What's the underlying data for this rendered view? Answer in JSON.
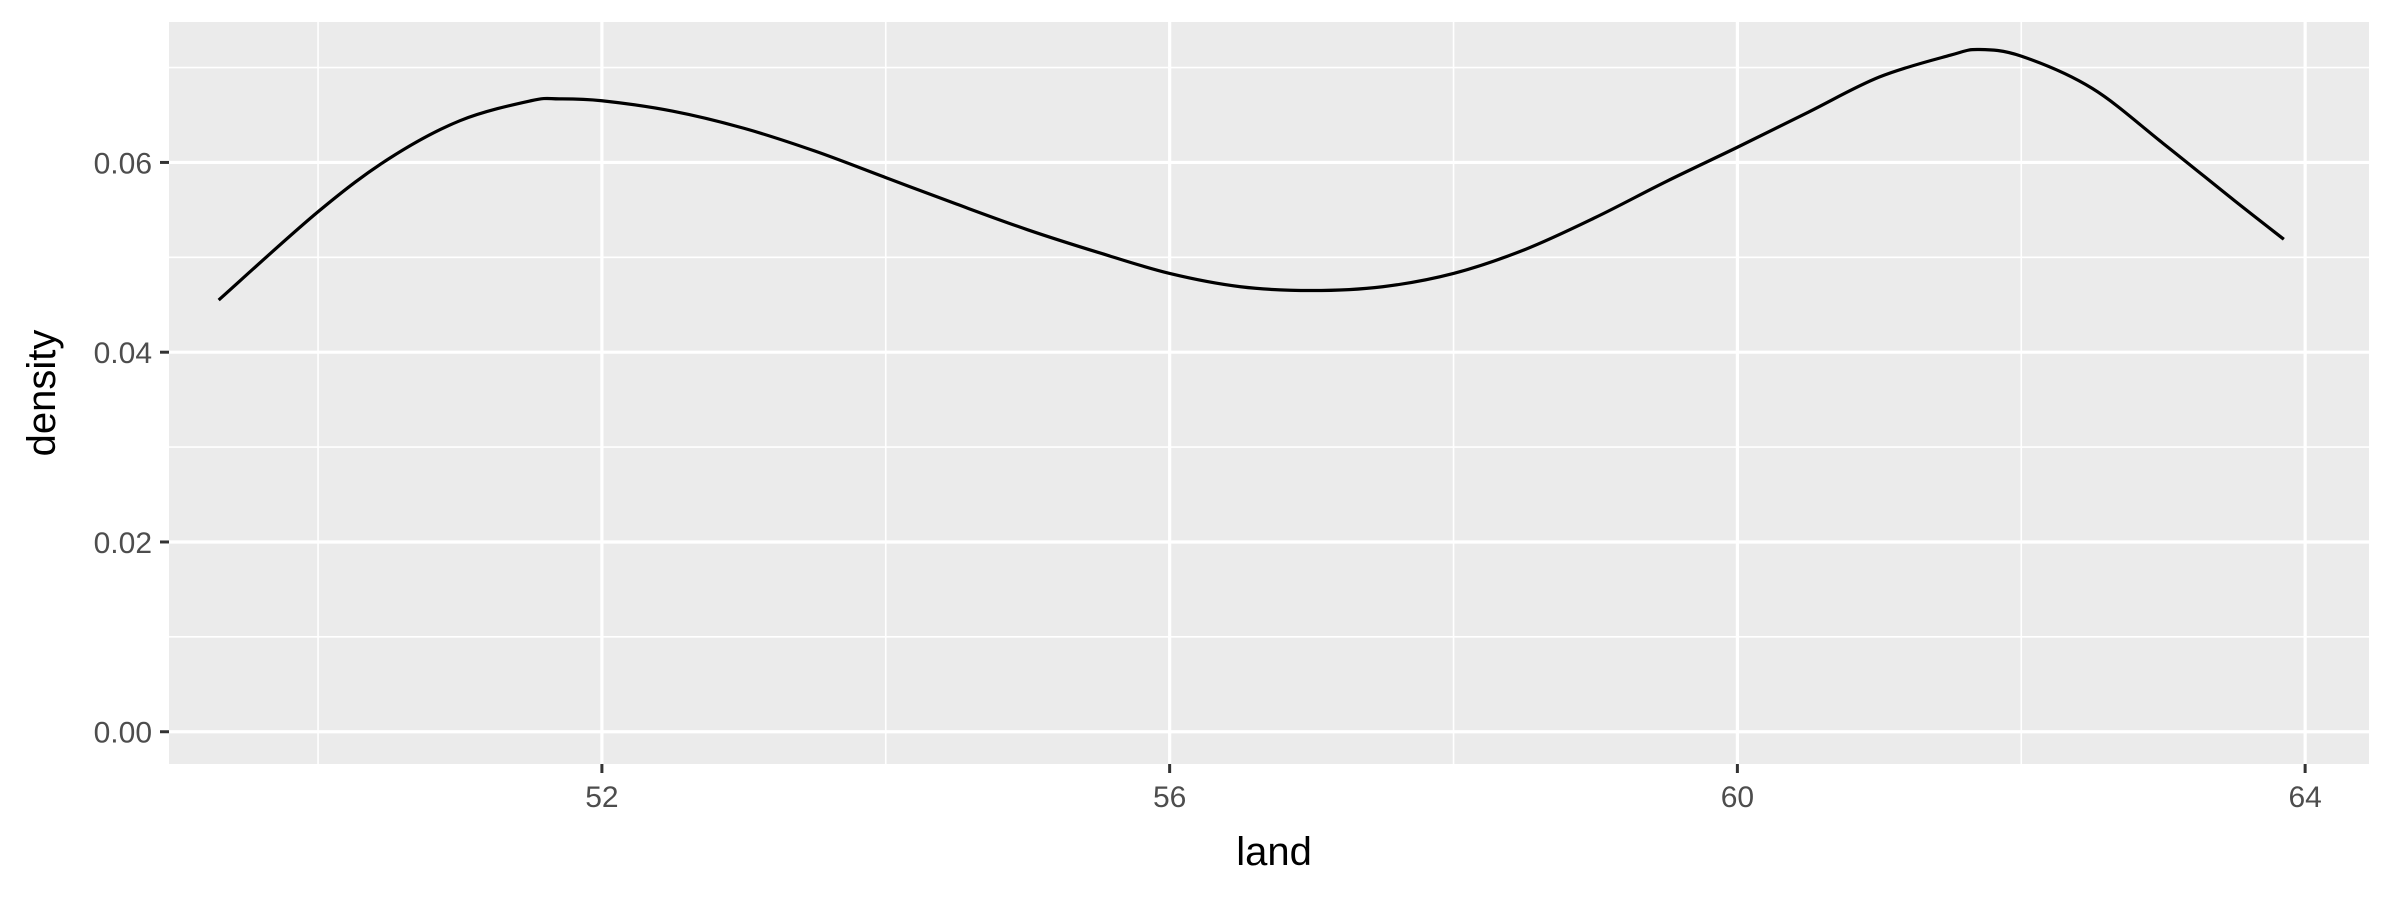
{
  "chart_data": {
    "type": "line",
    "title": "",
    "xlabel": "land",
    "ylabel": "density",
    "xlim": [
      48.95,
      64.45
    ],
    "ylim": [
      -0.0034,
      0.0748
    ],
    "x_ticks": [
      52,
      56,
      60,
      64
    ],
    "x_tick_labels": [
      "52",
      "56",
      "60",
      "64"
    ],
    "x_minor_ticks": [
      50,
      54,
      58,
      62
    ],
    "y_ticks": [
      0.0,
      0.02,
      0.04,
      0.06
    ],
    "y_tick_labels": [
      "0.00",
      "0.02",
      "0.04",
      "0.06"
    ],
    "y_minor_ticks": [
      0.01,
      0.03,
      0.05,
      0.07
    ],
    "grid": true,
    "series": [
      {
        "x": [
          49.3,
          50.0,
          50.5,
          51.0,
          51.5,
          51.7,
          52.0,
          52.5,
          53.0,
          53.5,
          54.0,
          54.5,
          55.0,
          55.5,
          56.0,
          56.5,
          57.0,
          57.5,
          58.0,
          58.5,
          59.0,
          59.5,
          60.0,
          60.5,
          61.0,
          61.5,
          61.7,
          62.0,
          62.5,
          63.0,
          63.5,
          63.85
        ],
        "y": [
          0.0455,
          0.0548,
          0.0604,
          0.0644,
          0.0665,
          0.0667,
          0.0665,
          0.0654,
          0.0636,
          0.0612,
          0.0584,
          0.0556,
          0.0529,
          0.0505,
          0.0483,
          0.0469,
          0.0465,
          0.0469,
          0.0483,
          0.0508,
          0.0542,
          0.058,
          0.0616,
          0.0653,
          0.069,
          0.0713,
          0.0719,
          0.0712,
          0.0678,
          0.062,
          0.056,
          0.0519
        ]
      }
    ],
    "colors": {
      "panel": "#ebebeb",
      "grid": "#ffffff",
      "line": "#000000",
      "tick_text": "#4d4d4d",
      "axis_title": "#000000",
      "tick_mark": "#333333"
    }
  }
}
